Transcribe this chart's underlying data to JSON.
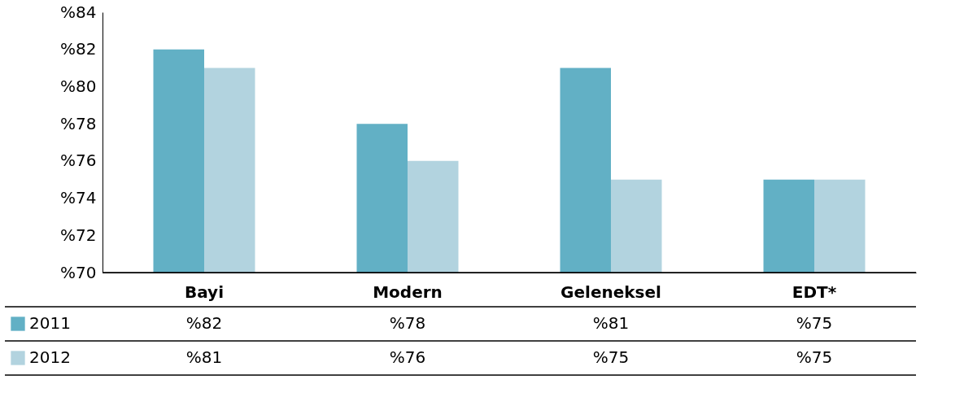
{
  "chart_data": {
    "type": "bar",
    "categories": [
      "Bayi",
      "Modern",
      "Geleneksel",
      "EDT*"
    ],
    "series": [
      {
        "name": "2011",
        "color": "#62b0c5",
        "values": [
          82,
          78,
          81,
          75
        ],
        "value_labels": [
          "%82",
          "%78",
          "%81",
          "%75"
        ]
      },
      {
        "name": "2012",
        "color": "#b2d3df",
        "values": [
          81,
          76,
          75,
          75
        ],
        "value_labels": [
          "%81",
          "%76",
          "%75",
          "%75"
        ]
      }
    ],
    "ylim": [
      70,
      84
    ],
    "yticks": [
      {
        "value": 70,
        "label": "%70"
      },
      {
        "value": 72,
        "label": "%72"
      },
      {
        "value": 74,
        "label": "%74"
      },
      {
        "value": 76,
        "label": "%76"
      },
      {
        "value": 78,
        "label": "%78"
      },
      {
        "value": 80,
        "label": "%80"
      },
      {
        "value": 82,
        "label": "%82"
      },
      {
        "value": 84,
        "label": "%84"
      }
    ],
    "grid": false,
    "legend": "bottom left"
  }
}
